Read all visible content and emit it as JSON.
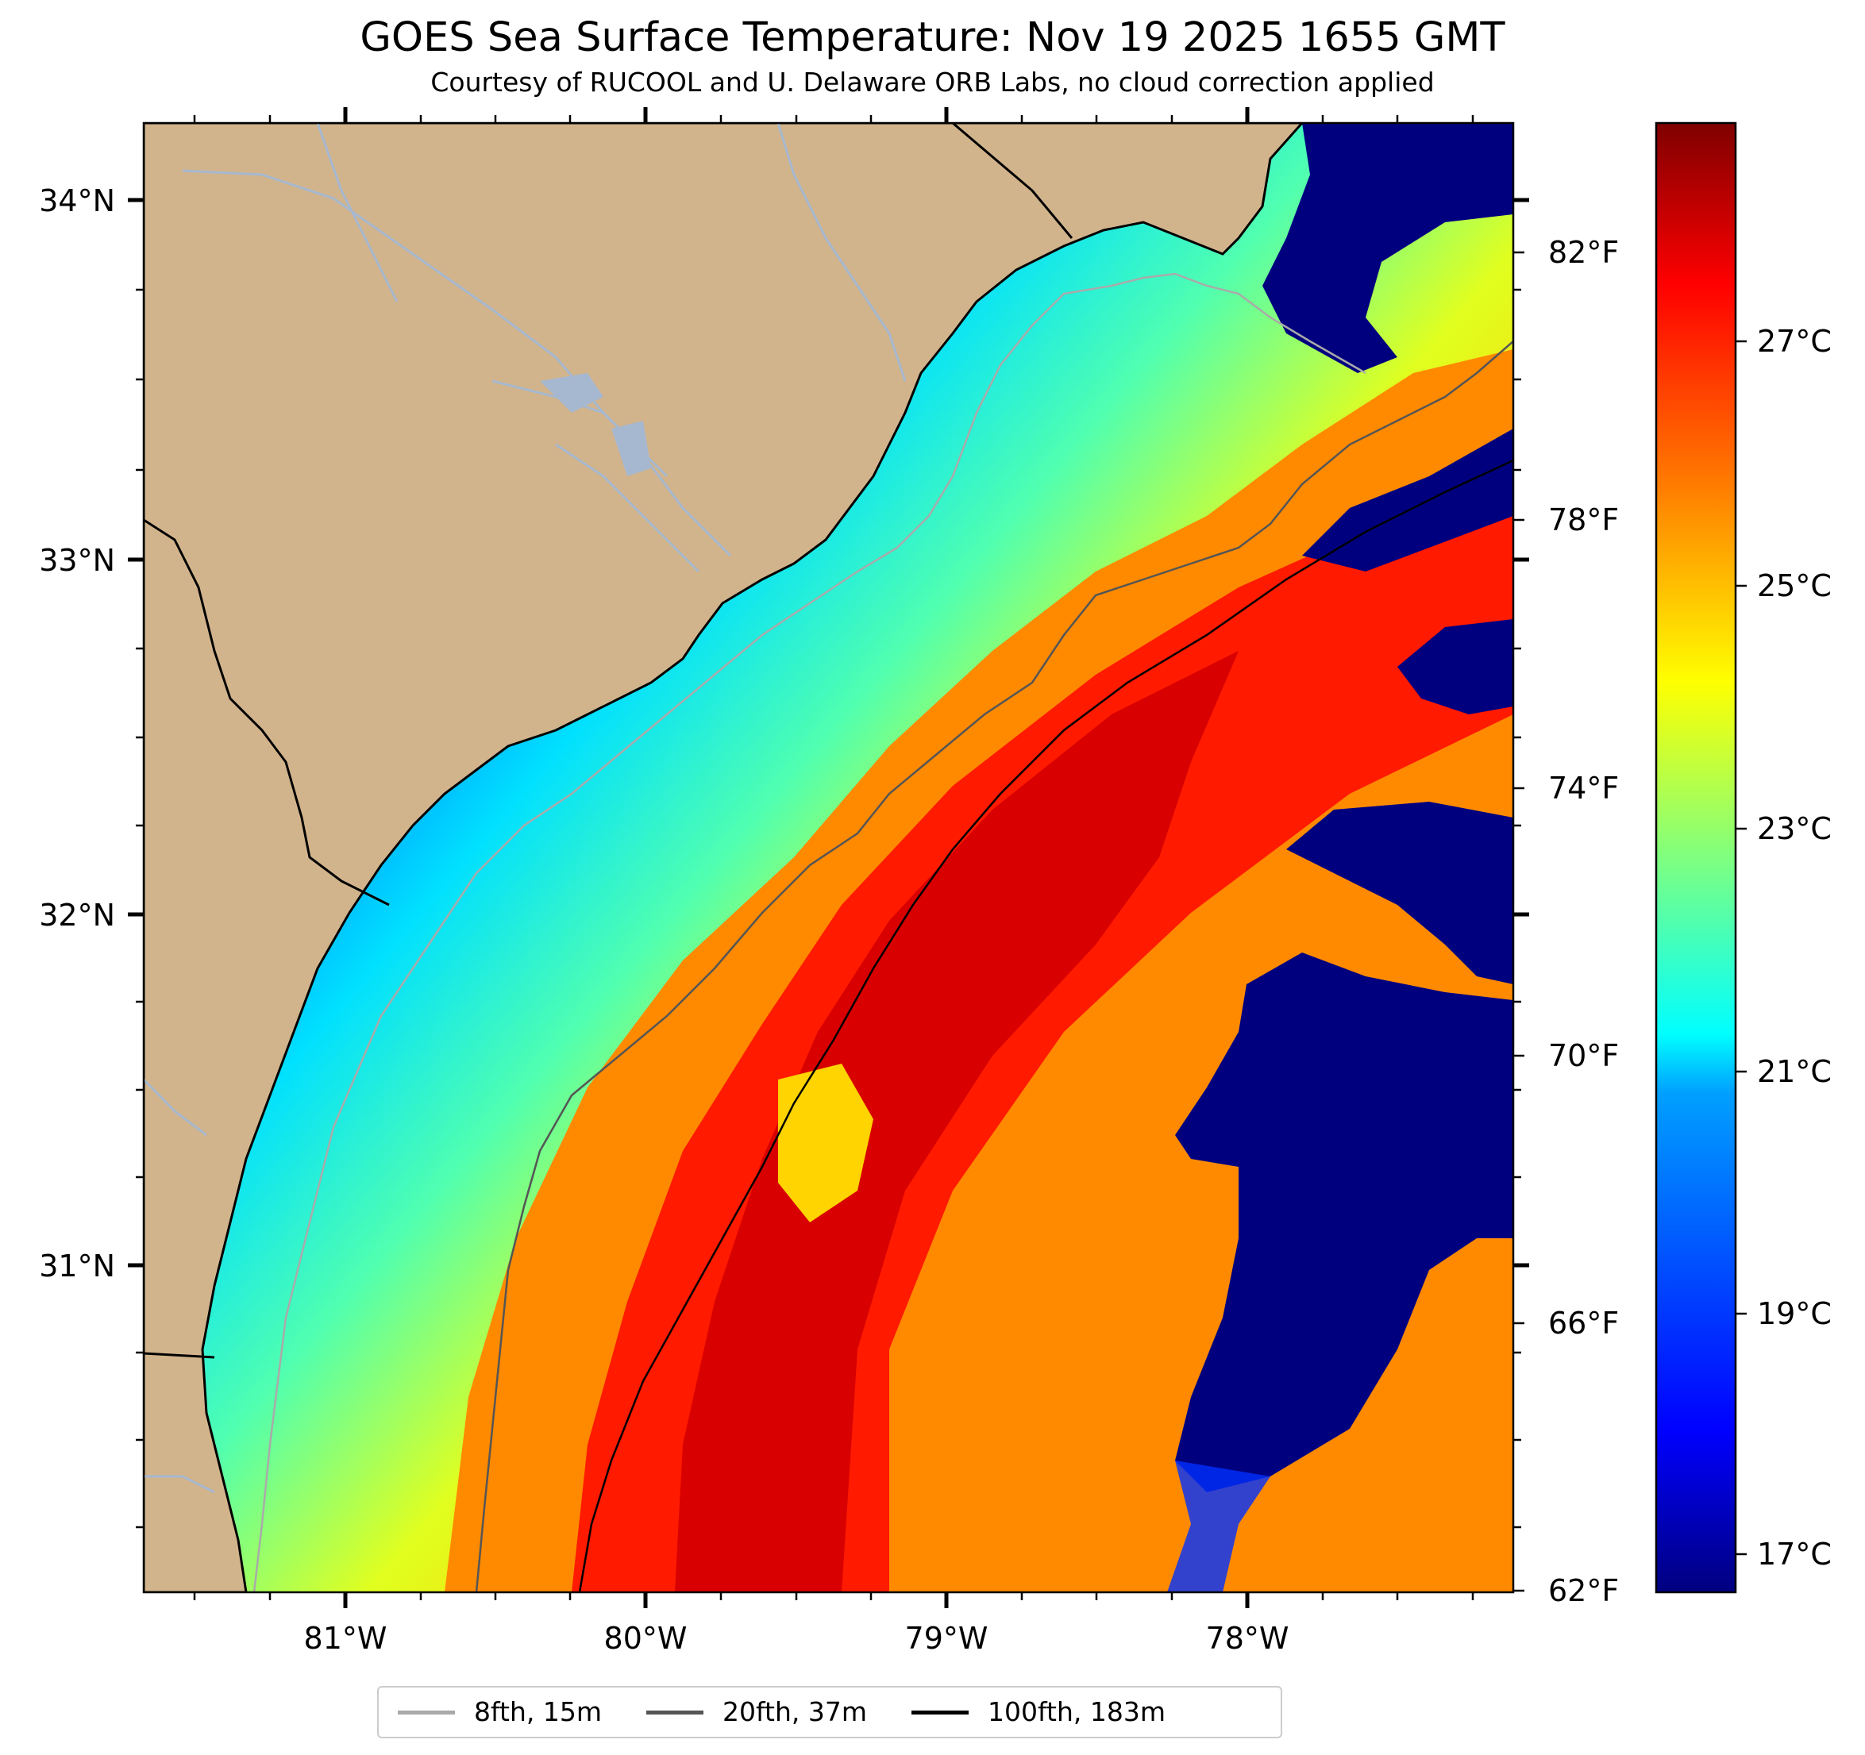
{
  "title": "GOES Sea Surface Temperature: Nov 19 2025 1655 GMT",
  "subtitle": "Courtesy of RUCOOL and U. Delaware ORB Labs, no cloud correction applied",
  "map": {
    "lat_labels": [
      "34°N",
      "33°N",
      "32°N",
      "31°N"
    ],
    "lon_labels": [
      "81°W",
      "80°W",
      "79°W",
      "78°W"
    ],
    "land_color": "#d2b48c",
    "river_color": "#a6b8cf",
    "border_color": "#000000"
  },
  "colorbar": {
    "celsius_labels": [
      "27°C",
      "25°C",
      "23°C",
      "21°C",
      "19°C",
      "17°C"
    ],
    "fahrenheit_labels": [
      "82°F",
      "78°F",
      "74°F",
      "70°F",
      "66°F",
      "62°F"
    ],
    "colormap": "jet",
    "stops": [
      "#00007f",
      "#0000ff",
      "#007fff",
      "#00ffff",
      "#7fff7f",
      "#ffff00",
      "#ff7f00",
      "#ff0000",
      "#7f0000"
    ]
  },
  "legend": {
    "items": [
      {
        "label": "8fth, 15m",
        "color": "#aaaaaa"
      },
      {
        "label": "20fth, 37m",
        "color": "#555555"
      },
      {
        "label": "100fth, 183m",
        "color": "#000000"
      }
    ]
  }
}
